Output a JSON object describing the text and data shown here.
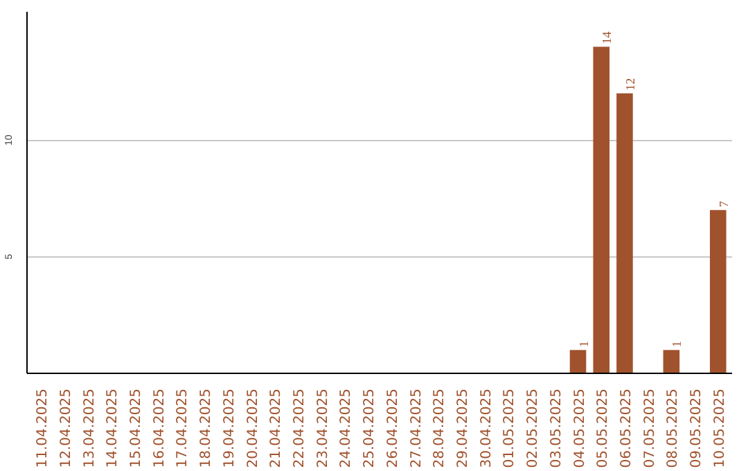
{
  "chart_data": {
    "type": "bar",
    "categories": [
      "11.04.2025",
      "12.04.2025",
      "13.04.2025",
      "14.04.2025",
      "15.04.2025",
      "16.04.2025",
      "17.04.2025",
      "18.04.2025",
      "19.04.2025",
      "20.04.2025",
      "21.04.2025",
      "22.04.2025",
      "23.04.2025",
      "24.04.2025",
      "25.04.2025",
      "26.04.2025",
      "27.04.2025",
      "28.04.2025",
      "29.04.2025",
      "30.04.2025",
      "01.05.2025",
      "02.05.2025",
      "03.05.2025",
      "04.05.2025",
      "05.05.2025",
      "06.05.2025",
      "07.05.2025",
      "08.05.2025",
      "09.05.2025",
      "10.05.2025"
    ],
    "values": [
      0,
      0,
      0,
      0,
      0,
      0,
      0,
      0,
      0,
      0,
      0,
      0,
      0,
      0,
      0,
      0,
      0,
      0,
      0,
      0,
      0,
      0,
      0,
      1,
      14,
      12,
      0,
      1,
      0,
      7
    ],
    "value_labels": [
      null,
      null,
      null,
      null,
      null,
      null,
      null,
      null,
      null,
      null,
      null,
      null,
      null,
      null,
      null,
      null,
      null,
      null,
      null,
      null,
      null,
      null,
      null,
      "1",
      "14",
      "12",
      null,
      "1",
      null,
      "7"
    ],
    "color": "#a0522d",
    "ylim": [
      0,
      15.5
    ],
    "yticks": [
      5,
      10
    ],
    "grid": "y"
  }
}
